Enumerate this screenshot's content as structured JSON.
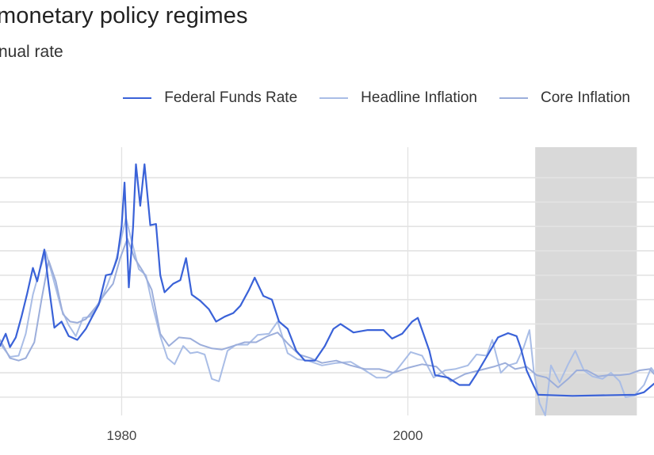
{
  "chart": {
    "title": "monetary policy regimes",
    "subtitle": "nual rate"
  },
  "colors": {
    "federal_funds": "#3a62d8",
    "headline": "#a9bde6",
    "core": "#9caedb",
    "recession_shade": "#d9d9d9",
    "grid": "#e3e3e3"
  },
  "chart_data": {
    "type": "line",
    "title": "monetary policy regimes",
    "subtitle": "nual rate",
    "xlabel": "",
    "ylabel": "",
    "xlim": [
      1971.5,
      2017.2
    ],
    "ylim": [
      -1.5,
      20.5
    ],
    "x_ticks": [
      1980,
      2000
    ],
    "y_gridlines": [
      0,
      2,
      4,
      6,
      8,
      10,
      12,
      14,
      16,
      18
    ],
    "grid": true,
    "legend_position": "top-right",
    "shaded_regions": [
      {
        "x0": 2008.9,
        "x1": 2016.0
      }
    ],
    "series": [
      {
        "name": "Federal Funds Rate",
        "color": "#3a62d8",
        "points": [
          [
            1971.5,
            4.2
          ],
          [
            1971.9,
            5.2
          ],
          [
            1972.2,
            4.1
          ],
          [
            1972.6,
            4.9
          ],
          [
            1973.0,
            6.6
          ],
          [
            1973.4,
            8.5
          ],
          [
            1973.8,
            10.6
          ],
          [
            1974.1,
            9.5
          ],
          [
            1974.6,
            12.1
          ],
          [
            1974.9,
            9.2
          ],
          [
            1975.3,
            5.7
          ],
          [
            1975.8,
            6.2
          ],
          [
            1976.3,
            5.0
          ],
          [
            1976.9,
            4.7
          ],
          [
            1977.5,
            5.6
          ],
          [
            1977.9,
            6.5
          ],
          [
            1978.4,
            7.6
          ],
          [
            1978.9,
            10.0
          ],
          [
            1979.3,
            10.1
          ],
          [
            1979.7,
            11.4
          ],
          [
            1980.0,
            14.0
          ],
          [
            1980.2,
            17.6
          ],
          [
            1980.5,
            9.0
          ],
          [
            1980.8,
            14.0
          ],
          [
            1981.0,
            19.1
          ],
          [
            1981.3,
            15.7
          ],
          [
            1981.6,
            19.1
          ],
          [
            1982.0,
            14.1
          ],
          [
            1982.4,
            14.2
          ],
          [
            1982.7,
            10.0
          ],
          [
            1983.0,
            8.6
          ],
          [
            1983.6,
            9.3
          ],
          [
            1984.1,
            9.6
          ],
          [
            1984.5,
            11.4
          ],
          [
            1984.9,
            8.4
          ],
          [
            1985.5,
            7.9
          ],
          [
            1986.1,
            7.2
          ],
          [
            1986.6,
            6.2
          ],
          [
            1987.2,
            6.6
          ],
          [
            1987.8,
            6.9
          ],
          [
            1988.3,
            7.5
          ],
          [
            1988.9,
            8.8
          ],
          [
            1989.3,
            9.8
          ],
          [
            1989.9,
            8.3
          ],
          [
            1990.5,
            8.0
          ],
          [
            1991.0,
            6.2
          ],
          [
            1991.6,
            5.6
          ],
          [
            1992.2,
            3.8
          ],
          [
            1992.8,
            3.0
          ],
          [
            1993.5,
            3.0
          ],
          [
            1994.2,
            4.2
          ],
          [
            1994.8,
            5.6
          ],
          [
            1995.3,
            6.0
          ],
          [
            1996.2,
            5.3
          ],
          [
            1997.2,
            5.5
          ],
          [
            1998.3,
            5.5
          ],
          [
            1998.9,
            4.8
          ],
          [
            1999.6,
            5.2
          ],
          [
            2000.3,
            6.2
          ],
          [
            2000.7,
            6.5
          ],
          [
            2001.0,
            5.5
          ],
          [
            2001.5,
            3.8
          ],
          [
            2001.9,
            1.8
          ],
          [
            2002.8,
            1.6
          ],
          [
            2003.6,
            1.0
          ],
          [
            2004.3,
            1.0
          ],
          [
            2004.8,
            1.9
          ],
          [
            2005.5,
            3.3
          ],
          [
            2006.3,
            4.9
          ],
          [
            2007.0,
            5.25
          ],
          [
            2007.6,
            5.0
          ],
          [
            2007.9,
            4.0
          ],
          [
            2008.3,
            2.2
          ],
          [
            2008.8,
            0.9
          ],
          [
            2009.1,
            0.2
          ],
          [
            2011.5,
            0.1
          ],
          [
            2015.9,
            0.2
          ],
          [
            2016.5,
            0.4
          ],
          [
            2017.2,
            1.1
          ]
        ]
      },
      {
        "name": "Headline Inflation",
        "color": "#a9bde6",
        "points": [
          [
            1971.5,
            4.4
          ],
          [
            1972.2,
            3.3
          ],
          [
            1972.8,
            3.4
          ],
          [
            1973.3,
            5.2
          ],
          [
            1973.8,
            8.4
          ],
          [
            1974.3,
            10.5
          ],
          [
            1974.7,
            11.9
          ],
          [
            1975.2,
            9.8
          ],
          [
            1975.8,
            7.2
          ],
          [
            1976.3,
            5.9
          ],
          [
            1976.8,
            5.0
          ],
          [
            1977.3,
            6.5
          ],
          [
            1977.8,
            6.6
          ],
          [
            1978.5,
            7.8
          ],
          [
            1979.0,
            9.2
          ],
          [
            1979.5,
            10.8
          ],
          [
            1979.9,
            12.6
          ],
          [
            1980.3,
            14.7
          ],
          [
            1980.7,
            12.8
          ],
          [
            1981.2,
            10.5
          ],
          [
            1981.7,
            10.0
          ],
          [
            1982.2,
            7.3
          ],
          [
            1982.7,
            5.0
          ],
          [
            1983.2,
            3.2
          ],
          [
            1983.7,
            2.7
          ],
          [
            1984.3,
            4.2
          ],
          [
            1984.8,
            3.6
          ],
          [
            1985.3,
            3.7
          ],
          [
            1985.8,
            3.5
          ],
          [
            1986.3,
            1.5
          ],
          [
            1986.8,
            1.3
          ],
          [
            1987.4,
            3.8
          ],
          [
            1988.0,
            4.3
          ],
          [
            1988.8,
            4.3
          ],
          [
            1989.5,
            5.1
          ],
          [
            1990.3,
            5.2
          ],
          [
            1990.9,
            6.2
          ],
          [
            1991.6,
            3.6
          ],
          [
            1992.3,
            3.1
          ],
          [
            1993.0,
            3.0
          ],
          [
            1994.0,
            2.6
          ],
          [
            1995.0,
            2.8
          ],
          [
            1996.0,
            2.9
          ],
          [
            1997.0,
            2.2
          ],
          [
            1997.8,
            1.6
          ],
          [
            1998.5,
            1.6
          ],
          [
            1999.2,
            2.2
          ],
          [
            2000.2,
            3.7
          ],
          [
            2001.0,
            3.4
          ],
          [
            2001.8,
            1.6
          ],
          [
            2002.6,
            2.2
          ],
          [
            2003.3,
            2.3
          ],
          [
            2004.2,
            2.6
          ],
          [
            2004.8,
            3.5
          ],
          [
            2005.5,
            3.4
          ],
          [
            2005.9,
            4.7
          ],
          [
            2006.5,
            2.0
          ],
          [
            2007.0,
            2.6
          ],
          [
            2007.6,
            2.8
          ],
          [
            2008.1,
            4.1
          ],
          [
            2008.5,
            5.5
          ],
          [
            2008.8,
            2.1
          ],
          [
            2009.2,
            -0.5
          ],
          [
            2009.6,
            -1.5
          ],
          [
            2010.0,
            2.6
          ],
          [
            2010.6,
            1.2
          ],
          [
            2011.2,
            2.7
          ],
          [
            2011.7,
            3.8
          ],
          [
            2012.3,
            2.2
          ],
          [
            2012.9,
            1.7
          ],
          [
            2013.6,
            1.5
          ],
          [
            2014.2,
            2.0
          ],
          [
            2014.8,
            1.3
          ],
          [
            2015.2,
            0.0
          ],
          [
            2015.8,
            0.1
          ],
          [
            2016.5,
            1.0
          ],
          [
            2017.0,
            2.4
          ],
          [
            2017.2,
            2.1
          ]
        ]
      },
      {
        "name": "Core Inflation",
        "color": "#9caedb",
        "points": [
          [
            1971.5,
            4.7
          ],
          [
            1972.2,
            3.2
          ],
          [
            1972.8,
            3.0
          ],
          [
            1973.3,
            3.2
          ],
          [
            1973.9,
            4.5
          ],
          [
            1974.4,
            8.0
          ],
          [
            1974.9,
            11.2
          ],
          [
            1975.4,
            9.5
          ],
          [
            1975.9,
            6.8
          ],
          [
            1976.4,
            6.2
          ],
          [
            1976.9,
            6.1
          ],
          [
            1977.5,
            6.4
          ],
          [
            1978.2,
            7.4
          ],
          [
            1978.8,
            8.4
          ],
          [
            1979.4,
            9.3
          ],
          [
            1979.9,
            11.4
          ],
          [
            1980.4,
            13.0
          ],
          [
            1980.9,
            11.4
          ],
          [
            1981.5,
            10.3
          ],
          [
            1982.1,
            8.8
          ],
          [
            1982.7,
            5.2
          ],
          [
            1983.3,
            4.2
          ],
          [
            1984.0,
            4.9
          ],
          [
            1984.8,
            4.8
          ],
          [
            1985.5,
            4.3
          ],
          [
            1986.3,
            4.0
          ],
          [
            1987.0,
            3.9
          ],
          [
            1987.8,
            4.2
          ],
          [
            1988.6,
            4.5
          ],
          [
            1989.4,
            4.5
          ],
          [
            1990.2,
            5.0
          ],
          [
            1990.9,
            5.3
          ],
          [
            1991.6,
            4.4
          ],
          [
            1992.4,
            3.5
          ],
          [
            1993.2,
            3.2
          ],
          [
            1994.0,
            2.8
          ],
          [
            1995.0,
            3.0
          ],
          [
            1996.0,
            2.6
          ],
          [
            1997.0,
            2.3
          ],
          [
            1998.0,
            2.3
          ],
          [
            1999.0,
            2.0
          ],
          [
            2000.0,
            2.4
          ],
          [
            2001.0,
            2.7
          ],
          [
            2002.0,
            2.5
          ],
          [
            2003.0,
            1.3
          ],
          [
            2004.0,
            1.9
          ],
          [
            2005.0,
            2.2
          ],
          [
            2006.0,
            2.5
          ],
          [
            2006.8,
            2.8
          ],
          [
            2007.5,
            2.3
          ],
          [
            2008.3,
            2.5
          ],
          [
            2009.0,
            1.8
          ],
          [
            2009.7,
            1.6
          ],
          [
            2010.5,
            0.8
          ],
          [
            2011.2,
            1.5
          ],
          [
            2011.8,
            2.2
          ],
          [
            2012.5,
            2.2
          ],
          [
            2013.3,
            1.7
          ],
          [
            2014.0,
            1.8
          ],
          [
            2014.8,
            1.8
          ],
          [
            2015.5,
            1.9
          ],
          [
            2016.2,
            2.2
          ],
          [
            2016.9,
            2.3
          ],
          [
            2017.2,
            1.9
          ]
        ]
      }
    ]
  }
}
